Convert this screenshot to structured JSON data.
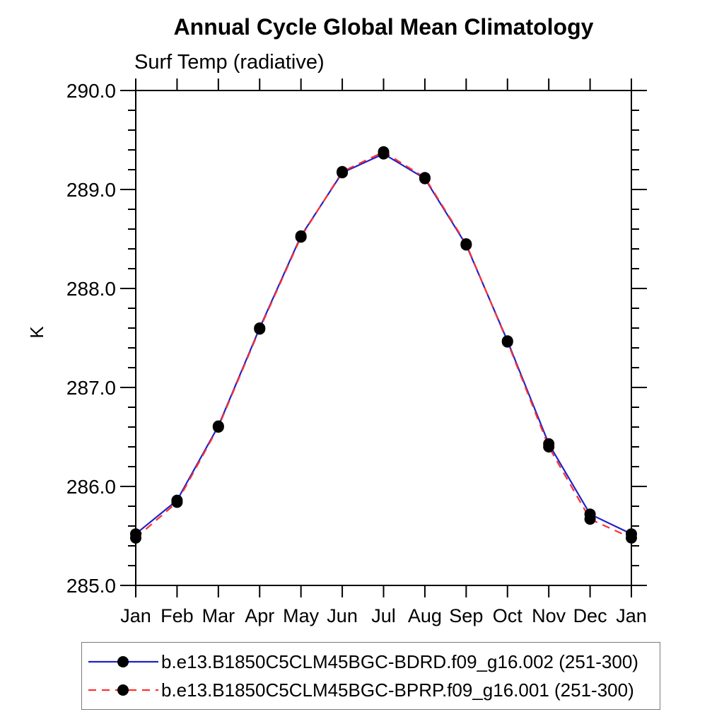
{
  "title": "Annual Cycle Global Mean Climatology",
  "chart_data": {
    "type": "line",
    "title": "Annual Cycle Global Mean Climatology",
    "subtitle": "Surf Temp (radiative)",
    "xlabel": "",
    "ylabel": "K",
    "categories": [
      "Jan",
      "Feb",
      "Mar",
      "Apr",
      "May",
      "Jun",
      "Jul",
      "Aug",
      "Sep",
      "Oct",
      "Nov",
      "Dec",
      "Jan"
    ],
    "ylim": [
      285.0,
      290.0
    ],
    "y_major_step": 1.0,
    "y_minor_step": 0.2,
    "y_tick_labels": [
      "285.0",
      "286.0",
      "287.0",
      "288.0",
      "289.0",
      "290.0"
    ],
    "grid": false,
    "legend_position": "bottom",
    "axis_color": "#000000",
    "marker_shape": "filled-circle",
    "series": [
      {
        "name": "b.e13.B1850C5CLM45BGC-BDRD.f09_g16.002 (251-300)",
        "color": "#2121c8",
        "line_style": "solid",
        "marker_color": "#000000",
        "values": [
          285.52,
          285.86,
          286.61,
          287.6,
          288.53,
          289.17,
          289.36,
          289.11,
          288.44,
          287.47,
          286.43,
          285.72,
          285.52
        ]
      },
      {
        "name": "b.e13.B1850C5CLM45BGC-BPRP.f09_g16.001 (251-300)",
        "color": "#ff3030",
        "line_style": "dashed",
        "marker_color": "#000000",
        "values": [
          285.48,
          285.84,
          286.6,
          287.59,
          288.52,
          289.18,
          289.38,
          289.12,
          288.45,
          287.46,
          286.4,
          285.67,
          285.48
        ]
      }
    ]
  }
}
